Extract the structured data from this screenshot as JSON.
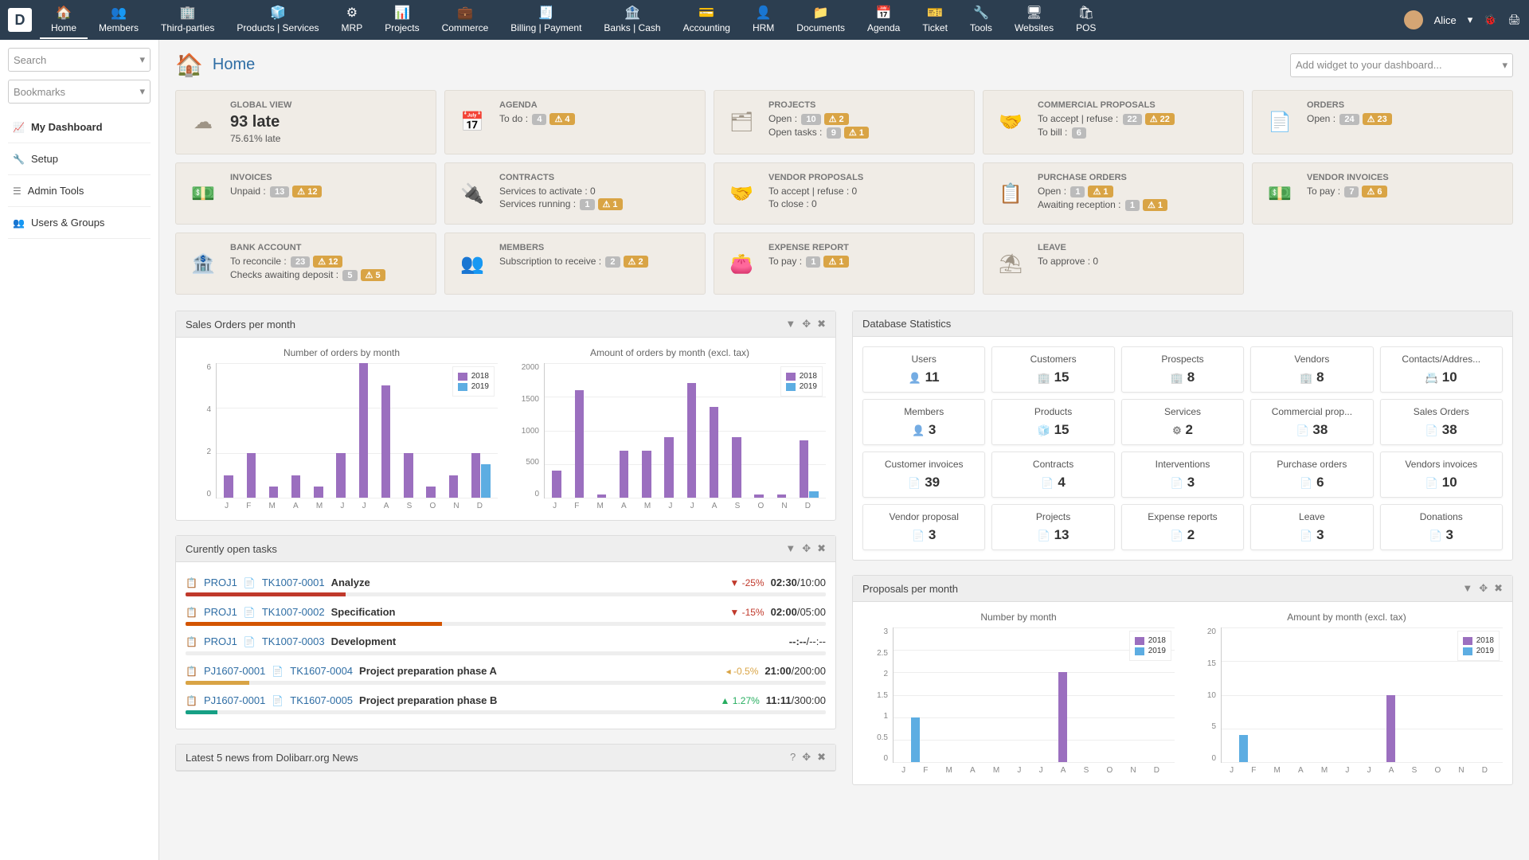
{
  "colors": {
    "accent": "#2e6da4",
    "topnav": "#2c3e50",
    "bar2018": "#9b6fbf",
    "bar2019": "#5dade2",
    "warn": "#d9a445",
    "neg": "#c0392b",
    "pos": "#27ae60"
  },
  "user": {
    "name": "Alice"
  },
  "topnav": [
    {
      "label": "Home",
      "icon": "🏠"
    },
    {
      "label": "Members",
      "icon": "👥"
    },
    {
      "label": "Third-parties",
      "icon": "🏢"
    },
    {
      "label": "Products | Services",
      "icon": "🧊"
    },
    {
      "label": "MRP",
      "icon": "⚙"
    },
    {
      "label": "Projects",
      "icon": "📊"
    },
    {
      "label": "Commerce",
      "icon": "💼"
    },
    {
      "label": "Billing | Payment",
      "icon": "🧾"
    },
    {
      "label": "Banks | Cash",
      "icon": "🏦"
    },
    {
      "label": "Accounting",
      "icon": "💳"
    },
    {
      "label": "HRM",
      "icon": "👤"
    },
    {
      "label": "Documents",
      "icon": "📁"
    },
    {
      "label": "Agenda",
      "icon": "📅"
    },
    {
      "label": "Ticket",
      "icon": "🎫"
    },
    {
      "label": "Tools",
      "icon": "🔧"
    },
    {
      "label": "Websites",
      "icon": "🖥"
    },
    {
      "label": "POS",
      "icon": "🛍"
    }
  ],
  "sidebar": {
    "search": "Search",
    "bookmarks": "Bookmarks",
    "links": [
      {
        "label": "My Dashboard",
        "icon": "📈",
        "bold": true
      },
      {
        "label": "Setup",
        "icon": "🔧"
      },
      {
        "label": "Admin Tools",
        "icon": "☰"
      },
      {
        "label": "Users & Groups",
        "icon": "👥"
      }
    ]
  },
  "page": {
    "title": "Home",
    "add_widget": "Add widget to your dashboard..."
  },
  "cards": [
    {
      "title": "GLOBAL VIEW",
      "icon": "☁",
      "big": "93 late",
      "sub": "75.61% late"
    },
    {
      "title": "AGENDA",
      "icon": "📅",
      "lines": [
        {
          "t": "To do :",
          "g": "4",
          "w": "4"
        }
      ]
    },
    {
      "title": "PROJECTS",
      "icon": "🗂",
      "lines": [
        {
          "t": "Open :",
          "g": "10",
          "w": "2"
        },
        {
          "t": "Open tasks :",
          "g": "9",
          "w": "1"
        }
      ]
    },
    {
      "title": "COMMERCIAL PROPOSALS",
      "icon": "🤝",
      "lines": [
        {
          "t": "To accept | refuse :",
          "g": "22",
          "w": "22"
        },
        {
          "t": "To bill :",
          "g": "6"
        }
      ]
    },
    {
      "title": "ORDERS",
      "icon": "📄",
      "lines": [
        {
          "t": "Open :",
          "g": "24",
          "w": "23"
        }
      ]
    },
    {
      "title": "INVOICES",
      "icon": "💵",
      "lines": [
        {
          "t": "Unpaid :",
          "g": "13",
          "w": "12"
        }
      ]
    },
    {
      "title": "CONTRACTS",
      "icon": "🔌",
      "lines": [
        {
          "t": "Services to activate : 0"
        },
        {
          "t": "Services running :",
          "g": "1",
          "w": "1"
        }
      ]
    },
    {
      "title": "VENDOR PROPOSALS",
      "icon": "🤝",
      "lines": [
        {
          "t": "To accept | refuse : 0"
        },
        {
          "t": "To close : 0"
        }
      ]
    },
    {
      "title": "PURCHASE ORDERS",
      "icon": "📋",
      "lines": [
        {
          "t": "Open :",
          "g": "1",
          "w": "1"
        },
        {
          "t": "Awaiting reception :",
          "g": "1",
          "w": "1"
        }
      ]
    },
    {
      "title": "VENDOR INVOICES",
      "icon": "💵",
      "lines": [
        {
          "t": "To pay :",
          "g": "7",
          "w": "6"
        }
      ]
    },
    {
      "title": "BANK ACCOUNT",
      "icon": "🏦",
      "lines": [
        {
          "t": "To reconcile :",
          "g": "23",
          "w": "12"
        },
        {
          "t": "Checks awaiting deposit :",
          "g": "5",
          "w": "5"
        }
      ]
    },
    {
      "title": "MEMBERS",
      "icon": "👥",
      "lines": [
        {
          "t": "Subscription to receive :",
          "g": "2",
          "w": "2"
        }
      ]
    },
    {
      "title": "EXPENSE REPORT",
      "icon": "👛",
      "lines": [
        {
          "t": "To pay :",
          "g": "1",
          "w": "1"
        }
      ]
    },
    {
      "title": "LEAVE",
      "icon": "⛱",
      "lines": [
        {
          "t": "To approve : 0"
        }
      ]
    }
  ],
  "sales_panel": {
    "title": "Sales Orders per month",
    "chart1": {
      "title": "Number of orders by month",
      "ymax": 6,
      "yticks": [
        6,
        4,
        2,
        0
      ],
      "months": [
        "J",
        "F",
        "M",
        "A",
        "M",
        "J",
        "J",
        "A",
        "S",
        "O",
        "N",
        "D"
      ],
      "series": [
        {
          "name": "2018",
          "color": "#9b6fbf",
          "data": [
            1,
            2,
            0.5,
            1,
            0.5,
            2,
            6,
            5,
            2,
            0.5,
            1,
            2
          ]
        },
        {
          "name": "2019",
          "color": "#5dade2",
          "data": [
            0,
            0,
            0,
            0,
            0,
            0,
            0,
            0,
            0,
            0,
            0,
            1.5
          ]
        }
      ]
    },
    "chart2": {
      "title": "Amount of orders by month (excl. tax)",
      "ymax": 2000,
      "yticks": [
        2000,
        1500,
        1000,
        500,
        0
      ],
      "months": [
        "J",
        "F",
        "M",
        "A",
        "M",
        "J",
        "J",
        "A",
        "S",
        "O",
        "N",
        "D"
      ],
      "series": [
        {
          "name": "2018",
          "color": "#9b6fbf",
          "data": [
            400,
            1600,
            50,
            700,
            700,
            900,
            1700,
            1350,
            900,
            50,
            50,
            850
          ]
        },
        {
          "name": "2019",
          "color": "#5dade2",
          "data": [
            0,
            0,
            0,
            0,
            0,
            0,
            0,
            0,
            0,
            0,
            0,
            100
          ]
        }
      ]
    }
  },
  "tasks_panel": {
    "title": "Curently open tasks",
    "rows": [
      {
        "proj": "PROJ1",
        "tid": "TK1007-0001",
        "name": "Analyze",
        "pct": "-25%",
        "cls": "neg",
        "time": "02:30",
        "total": "10:00",
        "prog": 25,
        "color": "#c0392b"
      },
      {
        "proj": "PROJ1",
        "tid": "TK1007-0002",
        "name": "Specification",
        "pct": "-15%",
        "cls": "neg",
        "time": "02:00",
        "total": "05:00",
        "prog": 40,
        "color": "#d35400"
      },
      {
        "proj": "PROJ1",
        "tid": "TK1007-0003",
        "name": "Development",
        "pct": "",
        "cls": "",
        "time": "--:--",
        "total": "--:--",
        "prog": 0,
        "color": "#999"
      },
      {
        "proj": "PJ1607-0001",
        "tid": "TK1607-0004",
        "name": "Project preparation phase A",
        "pct": "-0.5%",
        "cls": "sm",
        "time": "21:00",
        "total": "200:00",
        "prog": 10,
        "color": "#d9a445"
      },
      {
        "proj": "PJ1607-0001",
        "tid": "TK1607-0005",
        "name": "Project preparation phase B",
        "pct": "1.27%",
        "cls": "pos",
        "time": "11:11",
        "total": "300:00",
        "prog": 5,
        "color": "#16a085"
      }
    ]
  },
  "news_panel": {
    "title": "Latest 5 news from Dolibarr.org News"
  },
  "dbstats": {
    "title": "Database Statistics",
    "tiles": [
      {
        "l": "Users",
        "v": "11",
        "i": "👤"
      },
      {
        "l": "Customers",
        "v": "15",
        "i": "🏢"
      },
      {
        "l": "Prospects",
        "v": "8",
        "i": "🏢"
      },
      {
        "l": "Vendors",
        "v": "8",
        "i": "🏢"
      },
      {
        "l": "Contacts/Addres...",
        "v": "10",
        "i": "📇"
      },
      {
        "l": "Members",
        "v": "3",
        "i": "👤"
      },
      {
        "l": "Products",
        "v": "15",
        "i": "🧊"
      },
      {
        "l": "Services",
        "v": "2",
        "i": "⚙"
      },
      {
        "l": "Commercial prop...",
        "v": "38",
        "i": "📄"
      },
      {
        "l": "Sales Orders",
        "v": "38",
        "i": "📄"
      },
      {
        "l": "Customer invoices",
        "v": "39",
        "i": "📄"
      },
      {
        "l": "Contracts",
        "v": "4",
        "i": "📄"
      },
      {
        "l": "Interventions",
        "v": "3",
        "i": "📄"
      },
      {
        "l": "Purchase orders",
        "v": "6",
        "i": "📄"
      },
      {
        "l": "Vendors invoices",
        "v": "10",
        "i": "📄"
      },
      {
        "l": "Vendor proposal",
        "v": "3",
        "i": "📄"
      },
      {
        "l": "Projects",
        "v": "13",
        "i": "📄"
      },
      {
        "l": "Expense reports",
        "v": "2",
        "i": "📄"
      },
      {
        "l": "Leave",
        "v": "3",
        "i": "📄"
      },
      {
        "l": "Donations",
        "v": "3",
        "i": "📄"
      }
    ]
  },
  "proposals_panel": {
    "title": "Proposals per month",
    "chart1": {
      "title": "Number by month",
      "ymax": 3,
      "yticks": [
        3.0,
        2.5,
        2.0,
        1.5,
        1.0,
        0.5,
        0.0
      ],
      "months": [
        "J",
        "F",
        "M",
        "A",
        "M",
        "J",
        "J",
        "A",
        "S",
        "O",
        "N",
        "D"
      ],
      "series": [
        {
          "name": "2018",
          "color": "#9b6fbf",
          "data": [
            0,
            0,
            0,
            0,
            0,
            0,
            0,
            2,
            0,
            0,
            0,
            0
          ]
        },
        {
          "name": "2019",
          "color": "#5dade2",
          "data": [
            1,
            0,
            0,
            0,
            0,
            0,
            0,
            0,
            0,
            0,
            0,
            0
          ]
        }
      ]
    },
    "chart2": {
      "title": "Amount by month (excl. tax)",
      "ymax": 20,
      "yticks": [
        20,
        15,
        10,
        5,
        0
      ],
      "months": [
        "J",
        "F",
        "M",
        "A",
        "M",
        "J",
        "J",
        "A",
        "S",
        "O",
        "N",
        "D"
      ],
      "series": [
        {
          "name": "2018",
          "color": "#9b6fbf",
          "data": [
            0,
            0,
            0,
            0,
            0,
            0,
            0,
            10,
            0,
            0,
            0,
            0
          ]
        },
        {
          "name": "2019",
          "color": "#5dade2",
          "data": [
            4,
            0,
            0,
            0,
            0,
            0,
            0,
            0,
            0,
            0,
            0,
            0
          ]
        }
      ]
    }
  }
}
